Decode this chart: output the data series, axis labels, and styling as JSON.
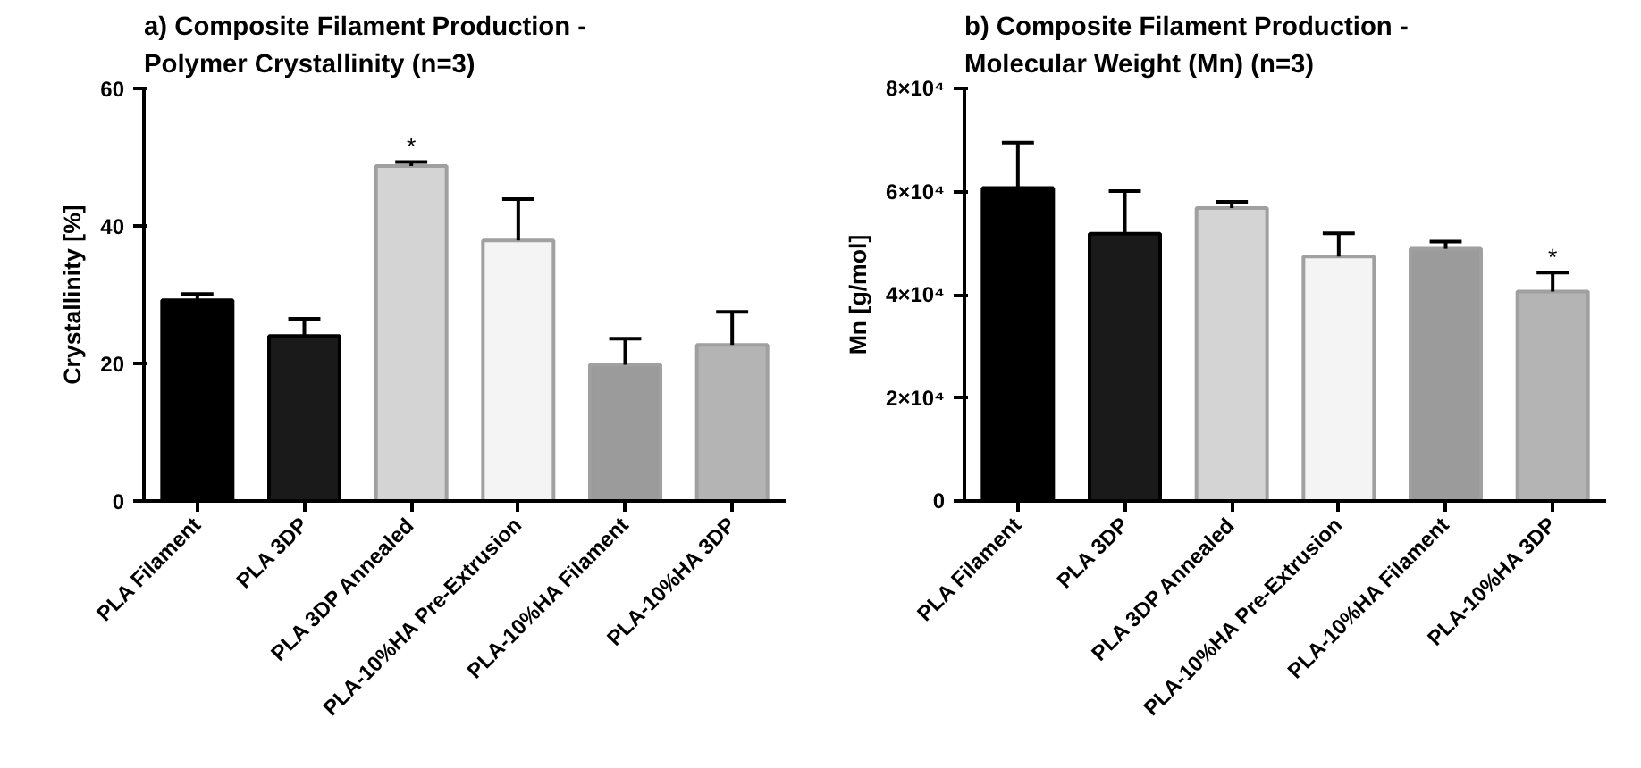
{
  "chart_data": [
    {
      "type": "bar",
      "title": "a) Composite Filament Production -\nPolymer Crystallinity (n=3)",
      "ylabel": "Crystallinity [%]",
      "categories": [
        "PLA Filament",
        "PLA 3DP",
        "PLA 3DP Annealed",
        "PLA-10%HA Pre-Extrusion",
        "PLA-10%HA Filament",
        "PLA-10%HA 3DP"
      ],
      "values": [
        29.2,
        24.0,
        48.7,
        37.9,
        19.8,
        22.7
      ],
      "errors": [
        [
          29.2,
          30.1
        ],
        [
          24.0,
          26.5
        ],
        [
          48.7,
          49.3
        ],
        [
          37.9,
          43.9
        ],
        [
          19.8,
          23.6
        ],
        [
          22.7,
          27.5
        ]
      ],
      "colors": [
        "#000000",
        "#1a1a1a",
        "#d4d4d4",
        "#f4f4f4",
        "#9b9b9c",
        "#b4b4b4"
      ],
      "ylim": [
        0,
        60
      ],
      "yticks": [
        0,
        20,
        40,
        60
      ],
      "annotations": [
        {
          "text": "*",
          "x": "PLA 3DP Annealed",
          "y": 49.3
        }
      ]
    },
    {
      "type": "bar",
      "title": "b) Composite Filament Production -\nMolecular Weight (Mn) (n=3)",
      "ylabel": "Mn [g/mol]",
      "categories": [
        "PLA Filament",
        "PLA 3DP",
        "PLA 3DP Annealed",
        "PLA-10%HA Pre-Extrusion",
        "PLA-10%HA Filament",
        "PLA-10%HA 3DP"
      ],
      "values": [
        60700,
        51800,
        56800,
        47400,
        48900,
        40600
      ],
      "errors": [
        [
          60700,
          69500
        ],
        [
          51800,
          60100
        ],
        [
          56800,
          58000
        ],
        [
          47400,
          51900
        ],
        [
          48900,
          50300
        ],
        [
          40600,
          44300
        ]
      ],
      "colors": [
        "#000000",
        "#1a1a1a",
        "#d4d4d4",
        "#f4f4f4",
        "#9b9b9c",
        "#b4b4b4"
      ],
      "ylim": [
        0,
        80000
      ],
      "yticks": [
        0,
        {
          "value": 20000,
          "label": "2×10⁴"
        },
        {
          "value": 40000,
          "label": "4×10⁴"
        },
        {
          "value": 60000,
          "label": "6×10⁴"
        },
        {
          "value": 80000,
          "label": "8×10⁴"
        }
      ],
      "annotations": [
        {
          "text": "*",
          "x": "PLA-10%HA 3DP",
          "y": 44300
        }
      ]
    }
  ]
}
